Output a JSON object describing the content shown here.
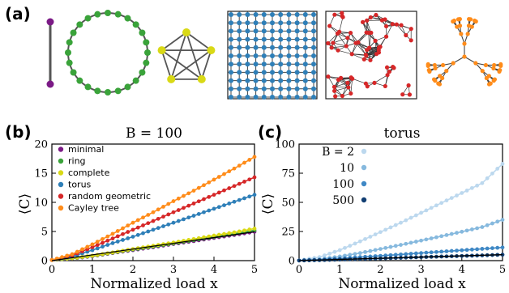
{
  "panel_labels": {
    "a": "(a)",
    "b": "(b)",
    "c": "(c)"
  },
  "colors": {
    "minimal": "#7b1a86",
    "ring": "#3aa33a",
    "complete": "#d9d916",
    "torus": "#2e7fb8",
    "random_geometric": "#d62728",
    "cayley_tree": "#ff8c1a",
    "edge": "#555555"
  },
  "network_icons": [
    "minimal",
    "ring",
    "complete",
    "torus",
    "random geometric",
    "Cayley tree"
  ],
  "chart_data": [
    {
      "type": "line",
      "title": "B = 100",
      "xlabel": "Normalized load x",
      "ylabel": "⟨C⟩",
      "xlim": [
        0,
        5
      ],
      "ylim": [
        0,
        20
      ],
      "xticks": [
        "0",
        "1",
        "2",
        "3",
        "4",
        "5"
      ],
      "yticks": [
        "0",
        "5",
        "10",
        "15",
        "20"
      ],
      "legend_position": "top-left",
      "series": [
        {
          "name": "minimal",
          "color": "#7b1a86",
          "x": [
            0,
            0.5,
            1,
            1.5,
            2,
            2.5,
            3,
            3.5,
            4,
            4.5,
            5
          ],
          "values": [
            0.1,
            0.35,
            0.75,
            1.3,
            1.8,
            2.3,
            2.85,
            3.35,
            3.9,
            4.4,
            4.95
          ]
        },
        {
          "name": "ring",
          "color": "#3aa33a",
          "x": [
            0,
            0.5,
            1,
            1.5,
            2,
            2.5,
            3,
            3.5,
            4,
            4.5,
            5
          ],
          "values": [
            0.1,
            0.38,
            0.8,
            1.35,
            1.9,
            2.4,
            2.95,
            3.5,
            4.05,
            4.6,
            5.2
          ]
        },
        {
          "name": "complete",
          "color": "#d9d916",
          "x": [
            0,
            0.5,
            1,
            1.5,
            2,
            2.5,
            3,
            3.5,
            4,
            4.5,
            5
          ],
          "values": [
            0.1,
            0.4,
            0.85,
            1.4,
            2.0,
            2.55,
            3.1,
            3.7,
            4.3,
            4.85,
            5.5
          ]
        },
        {
          "name": "torus",
          "color": "#2e7fb8",
          "x": [
            0,
            0.5,
            1,
            1.5,
            2,
            2.5,
            3,
            3.5,
            4,
            4.5,
            5
          ],
          "values": [
            0.1,
            0.7,
            1.8,
            3.0,
            4.1,
            5.3,
            6.5,
            7.7,
            8.9,
            10.1,
            11.3
          ]
        },
        {
          "name": "random geometric",
          "color": "#d62728",
          "x": [
            0,
            0.5,
            1,
            1.5,
            2,
            2.5,
            3,
            3.5,
            4,
            4.5,
            5
          ],
          "values": [
            0.1,
            0.9,
            2.3,
            3.8,
            5.3,
            6.8,
            8.3,
            9.8,
            11.3,
            12.8,
            14.3
          ]
        },
        {
          "name": "Cayley tree",
          "color": "#ff8c1a",
          "x": [
            0,
            0.5,
            1,
            1.5,
            2,
            2.5,
            3,
            3.5,
            4,
            4.5,
            5
          ],
          "values": [
            0.1,
            1.1,
            2.8,
            4.6,
            6.5,
            8.3,
            10.2,
            12.0,
            13.9,
            15.8,
            17.8
          ]
        }
      ]
    },
    {
      "type": "line",
      "title": "torus",
      "xlabel": "Normalized load x",
      "ylabel": "⟨C⟩",
      "xlim": [
        0,
        5
      ],
      "ylim": [
        0,
        100
      ],
      "xticks": [
        "0",
        "1",
        "2",
        "3",
        "4",
        "5"
      ],
      "yticks": [
        "0",
        "25",
        "50",
        "75",
        "100"
      ],
      "legend_position": "top-left",
      "series": [
        {
          "name": "B = 2",
          "color": "#bcd8ee",
          "x": [
            0,
            0.5,
            1,
            1.5,
            2,
            2.5,
            3,
            3.5,
            4,
            4.5,
            5
          ],
          "values": [
            0.2,
            3,
            9,
            16.5,
            24.5,
            32.5,
            41,
            49.5,
            58,
            66.5,
            83
          ]
        },
        {
          "name": "10",
          "color": "#86b9de",
          "x": [
            0,
            0.5,
            1,
            1.5,
            2,
            2.5,
            3,
            3.5,
            4,
            4.5,
            5
          ],
          "values": [
            0.1,
            1.2,
            3.5,
            6.5,
            10,
            13.5,
            17.2,
            21,
            24.8,
            28.8,
            35
          ]
        },
        {
          "name": "100",
          "color": "#3f88c5",
          "x": [
            0,
            0.5,
            1,
            1.5,
            2,
            2.5,
            3,
            3.5,
            4,
            4.5,
            5
          ],
          "values": [
            0.1,
            0.7,
            1.8,
            3.0,
            4.1,
            5.3,
            6.5,
            7.7,
            8.9,
            10.1,
            11.3
          ]
        },
        {
          "name": "500",
          "color": "#123f73",
          "x": [
            0,
            0.5,
            1,
            1.5,
            2,
            2.5,
            3,
            3.5,
            4,
            4.5,
            5
          ],
          "values": [
            0.1,
            0.4,
            0.9,
            1.4,
            1.9,
            2.4,
            3.0,
            3.5,
            4.0,
            4.5,
            5.1
          ]
        }
      ]
    }
  ]
}
